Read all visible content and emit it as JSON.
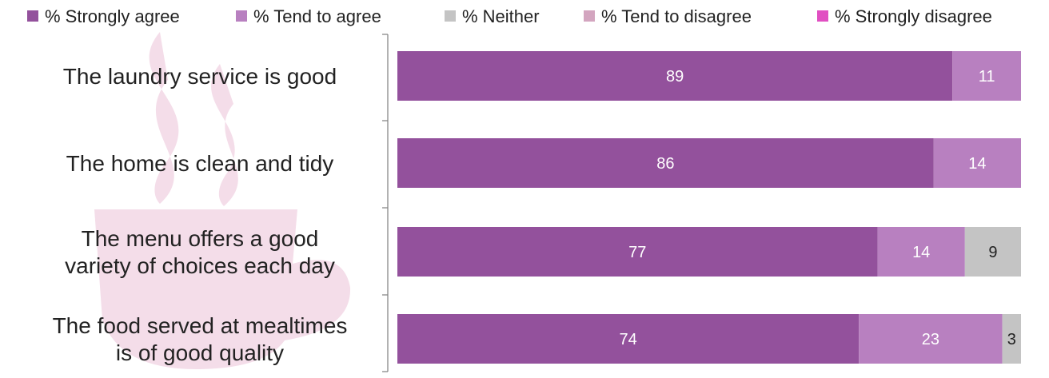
{
  "chart_data": {
    "type": "bar",
    "orientation": "horizontal",
    "stacked": true,
    "categories": [
      "The laundry service is good",
      "The home is clean and tidy",
      "The menu offers a good variety of choices each day",
      "The food served at mealtimes is of good quality"
    ],
    "category_lines": [
      [
        "The laundry service is good"
      ],
      [
        "The home is clean and tidy"
      ],
      [
        "The menu offers a good",
        "variety of choices each day"
      ],
      [
        "The food served at mealtimes",
        "is of good quality"
      ]
    ],
    "series": [
      {
        "name": "% Strongly agree",
        "color": "#93519c",
        "label_color": "#ffffff",
        "values": [
          89,
          86,
          77,
          74
        ]
      },
      {
        "name": "% Tend to agree",
        "color": "#b880c0",
        "label_color": "#ffffff",
        "values": [
          11,
          14,
          14,
          23
        ]
      },
      {
        "name": "% Neither",
        "color": "#c4c4c4",
        "label_color": "#222222",
        "values": [
          0,
          0,
          9,
          3
        ]
      },
      {
        "name": "% Tend to disagree",
        "color": "#d3a5bf",
        "label_color": "#222222",
        "values": [
          0,
          0,
          0,
          0
        ]
      },
      {
        "name": "% Strongly disagree",
        "color": "#e14fc2",
        "label_color": "#ffffff",
        "values": [
          0,
          0,
          0,
          0
        ]
      }
    ],
    "xlim": [
      0,
      100
    ],
    "legend_position": "top",
    "grid": false,
    "background_icon": "cup-icon",
    "background_icon_color": "#f4dde9"
  }
}
